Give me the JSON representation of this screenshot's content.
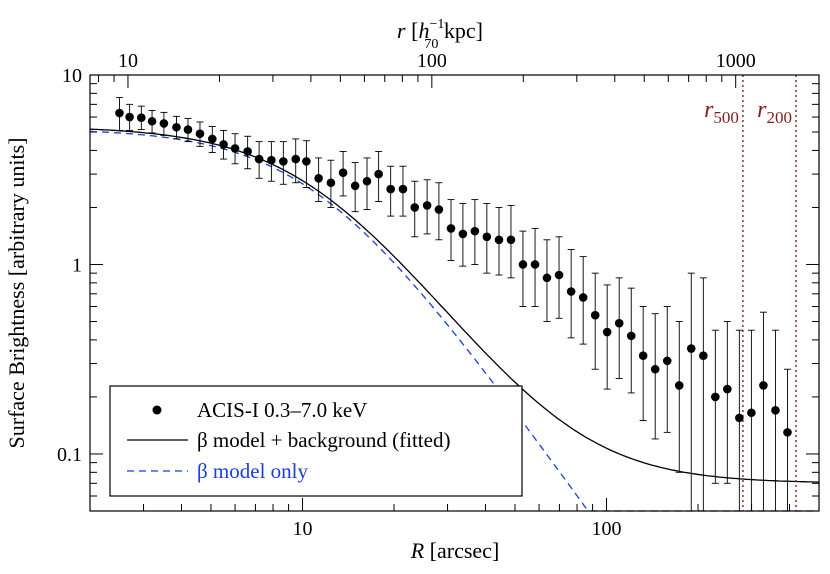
{
  "chart_data": {
    "type": "scatter",
    "x_axis": {
      "label_italic": "R",
      "label_rest": " [arcsec]",
      "scale": "log",
      "range": [
        2.0,
        500
      ],
      "tick_labels": [
        {
          "value": 10,
          "label": "10"
        },
        {
          "value": 100,
          "label": "100"
        }
      ]
    },
    "top_axis": {
      "label_italic": "r",
      "label_h": "h",
      "label_h_sup": "−1",
      "label_h_sub": "70",
      "label_rest": " kpc]",
      "label_open": " [",
      "scale": "log",
      "range": [
        7.5,
        1880
      ],
      "tick_labels": [
        {
          "value": 10,
          "label": "10"
        },
        {
          "value": 100,
          "label": "100"
        },
        {
          "value": 1000,
          "label": "1000"
        }
      ]
    },
    "y_axis": {
      "label": "Surface Brightness [arbitrary units]",
      "scale": "log",
      "range": [
        0.05,
        10
      ],
      "tick_labels": [
        {
          "value": 10,
          "label": "10"
        },
        {
          "value": 1,
          "label": "1"
        },
        {
          "value": 0.1,
          "label": "0.1"
        }
      ]
    },
    "series": [
      {
        "name": "ACIS-I 0.3–7.0 keV",
        "kind": "points",
        "color": "#000000",
        "points": [
          [
            2.5,
            6.3,
            7.6,
            5.1
          ],
          [
            2.7,
            6.0,
            7.0,
            5.1
          ],
          [
            2.95,
            5.95,
            6.85,
            5.15
          ],
          [
            3.2,
            5.7,
            6.5,
            4.95
          ],
          [
            3.5,
            5.55,
            6.35,
            4.8
          ],
          [
            3.85,
            5.3,
            6.05,
            4.6
          ],
          [
            4.2,
            5.15,
            5.9,
            4.45
          ],
          [
            4.6,
            4.9,
            5.65,
            4.2
          ],
          [
            5.05,
            4.6,
            5.35,
            3.9
          ],
          [
            5.5,
            4.3,
            5.1,
            3.6
          ],
          [
            6.0,
            4.1,
            4.9,
            3.4
          ],
          [
            6.6,
            3.95,
            4.75,
            3.2
          ],
          [
            7.2,
            3.6,
            4.45,
            2.85
          ],
          [
            7.9,
            3.55,
            4.45,
            2.75
          ],
          [
            8.65,
            3.5,
            4.45,
            2.65
          ],
          [
            9.5,
            3.6,
            4.6,
            2.7
          ],
          [
            10.3,
            3.5,
            4.5,
            2.55
          ],
          [
            11.3,
            2.85,
            3.65,
            2.15
          ],
          [
            12.4,
            2.7,
            3.55,
            2.0
          ],
          [
            13.6,
            3.05,
            3.95,
            2.3
          ],
          [
            14.9,
            2.6,
            3.45,
            1.9
          ],
          [
            16.3,
            2.75,
            3.65,
            1.95
          ],
          [
            17.8,
            3.0,
            3.95,
            2.15
          ],
          [
            19.5,
            2.5,
            3.3,
            1.8
          ],
          [
            21.4,
            2.5,
            3.3,
            1.8
          ],
          [
            23.4,
            2.0,
            2.75,
            1.4
          ],
          [
            25.7,
            2.05,
            2.8,
            1.45
          ],
          [
            28.1,
            1.95,
            2.7,
            1.35
          ],
          [
            30.8,
            1.55,
            2.2,
            1.05
          ],
          [
            33.7,
            1.45,
            2.1,
            0.98
          ],
          [
            36.9,
            1.5,
            2.2,
            1.0
          ],
          [
            40.4,
            1.4,
            2.1,
            0.9
          ],
          [
            44.3,
            1.35,
            2.0,
            0.88
          ],
          [
            48.5,
            1.35,
            2.05,
            0.85
          ],
          [
            53.1,
            1.0,
            1.5,
            0.6
          ],
          [
            58.2,
            1.0,
            1.55,
            0.6
          ],
          [
            63.7,
            0.85,
            1.35,
            0.5
          ],
          [
            69.8,
            0.88,
            1.4,
            0.52
          ],
          [
            76.5,
            0.72,
            1.2,
            0.41
          ],
          [
            83.8,
            0.67,
            1.1,
            0.38
          ],
          [
            91.8,
            0.54,
            0.9,
            0.28
          ],
          [
            100.5,
            0.44,
            0.78,
            0.22
          ],
          [
            110.1,
            0.49,
            0.85,
            0.25
          ],
          [
            120.6,
            0.42,
            0.75,
            0.21
          ],
          [
            132.0,
            0.33,
            0.6,
            0.15
          ],
          [
            144.6,
            0.28,
            0.55,
            0.12
          ],
          [
            158.4,
            0.31,
            0.6,
            0.13
          ],
          [
            173.5,
            0.23,
            0.5,
            0.08
          ],
          [
            190.0,
            0.36,
            0.9,
            0.05
          ],
          [
            208.2,
            0.33,
            0.85,
            0.05
          ],
          [
            228.0,
            0.2,
            0.45,
            0.07
          ],
          [
            249.7,
            0.22,
            0.5,
            0.07
          ],
          [
            273.5,
            0.155,
            0.45,
            0.05
          ],
          [
            299.6,
            0.165,
            0.45,
            0.05
          ],
          [
            328.2,
            0.23,
            0.56,
            0.05
          ],
          [
            359.5,
            0.17,
            0.45,
            0.05
          ],
          [
            393.8,
            0.13,
            0.28,
            0.05
          ]
        ]
      },
      {
        "name": "β model + background (fitted)",
        "kind": "line",
        "color": "#000000",
        "dash": "none",
        "model": {
          "S0": 5.3,
          "rc": 11,
          "beta": 0.54,
          "bkg": 0.07
        }
      },
      {
        "name": "β model only",
        "kind": "line",
        "color": "#1a3fd6",
        "dash": "7,5",
        "model": {
          "S0": 5.23,
          "rc": 11,
          "beta": 0.54,
          "bkg": 0
        }
      }
    ],
    "vertical_lines": [
      {
        "label_main": "r",
        "label_sub": "500",
        "x": 281,
        "color": "#8b1a1a"
      },
      {
        "label_main": "r",
        "label_sub": "200",
        "x": 420,
        "color": "#8b1a1a"
      }
    ],
    "legend": {
      "placement": "bottom-left",
      "entries": [
        "ACIS-I 0.3–7.0 keV",
        "β model + background (fitted)",
        "β model only"
      ]
    }
  }
}
